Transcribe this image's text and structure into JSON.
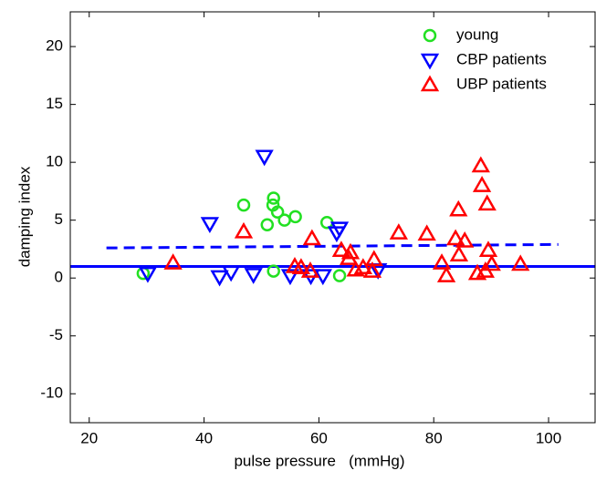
{
  "chart_data": {
    "type": "scatter",
    "xlabel": "pulse pressure   (mmHg)",
    "ylabel": "damping index",
    "xlim": [
      16.7,
      108.1
    ],
    "ylim": [
      -12.5,
      23
    ],
    "xticks": [
      20,
      40,
      60,
      80,
      100
    ],
    "yticks": [
      -10,
      -5,
      0,
      5,
      10,
      15,
      20
    ],
    "legend": "top-right",
    "series": [
      {
        "name": "young",
        "color": "#22e022",
        "marker": "circle",
        "x": [
          29.4,
          46.9,
          51.0,
          52.1,
          52.0,
          52.8,
          54.0,
          55.9,
          61.4,
          52.1,
          63.6
        ],
        "y": [
          0.4,
          6.3,
          4.6,
          6.9,
          6.3,
          5.7,
          5.0,
          5.3,
          4.8,
          0.6,
          0.2
        ]
      },
      {
        "name": "CBP patients",
        "color": "#0000ff",
        "marker": "triangle-down",
        "x": [
          30.2,
          41.0,
          42.7,
          44.7,
          48.6,
          50.5,
          55.0,
          58.6,
          60.7,
          63.1,
          63.6,
          70.3
        ],
        "y": [
          0.4,
          4.7,
          0.1,
          0.5,
          0.3,
          10.5,
          0.2,
          0.2,
          0.2,
          3.9,
          4.3,
          0.7
        ]
      },
      {
        "name": "UBP patients",
        "color": "#ff0000",
        "marker": "triangle-up",
        "x": [
          34.6,
          46.9,
          55.8,
          56.9,
          58.8,
          58.5,
          63.9,
          65.2,
          65.5,
          66.4,
          67.7,
          69.3,
          69.6,
          73.9,
          78.8,
          81.4,
          82.2,
          83.8,
          84.3,
          84.4,
          85.4,
          87.6,
          88.2,
          88.4,
          89.3,
          89.5,
          89.0,
          90.1,
          95.1
        ],
        "y": [
          1.3,
          4.0,
          1.0,
          0.9,
          3.4,
          0.6,
          2.4,
          1.7,
          2.2,
          0.7,
          0.9,
          0.6,
          1.6,
          3.9,
          3.8,
          1.3,
          0.2,
          3.4,
          5.9,
          2.0,
          3.2,
          0.4,
          9.7,
          8.0,
          6.4,
          2.4,
          0.6,
          1.2,
          1.2
        ]
      }
    ],
    "lines": [
      {
        "color": "#0000ff",
        "style": "solid",
        "x": [
          16.7,
          108.1
        ],
        "y": [
          1.0,
          1.0
        ]
      },
      {
        "color": "#0000ff",
        "style": "dashed",
        "x": [
          23.0,
          101.7
        ],
        "y": [
          2.6,
          2.9
        ]
      }
    ]
  }
}
